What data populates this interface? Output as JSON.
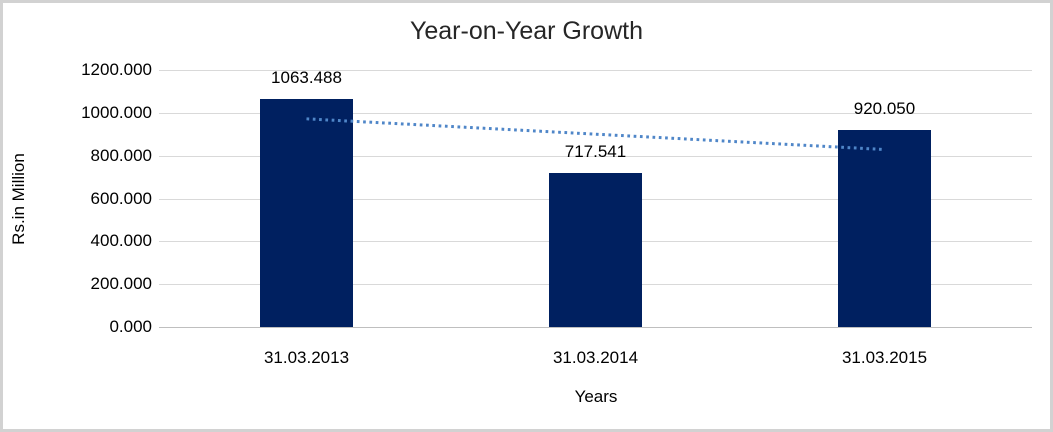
{
  "chart_data": {
    "type": "bar",
    "title": "Year-on-Year Growth",
    "xlabel": "Years",
    "ylabel": "Rs.in Million",
    "categories": [
      "31.03.2013",
      "31.03.2014",
      "31.03.2015"
    ],
    "values": [
      1063.488,
      717.541,
      920.05
    ],
    "data_labels": [
      "1063.488",
      "717.541",
      "920.050"
    ],
    "ylim": [
      0,
      1200
    ],
    "ytick_labels": [
      "0.000",
      "200.000",
      "400.000",
      "600.000",
      "800.000",
      "1000.000",
      "1200.000"
    ],
    "ytick_values": [
      0,
      200,
      400,
      600,
      800,
      1000,
      1200
    ],
    "grid": true,
    "legend_position": "none",
    "bar_color": "#002060",
    "trendline": {
      "type": "linear",
      "style": "dotted",
      "color": "#4f86c8"
    },
    "frame_border_color": "#d2d2d2",
    "gridline_color": "#d9d9d9"
  }
}
